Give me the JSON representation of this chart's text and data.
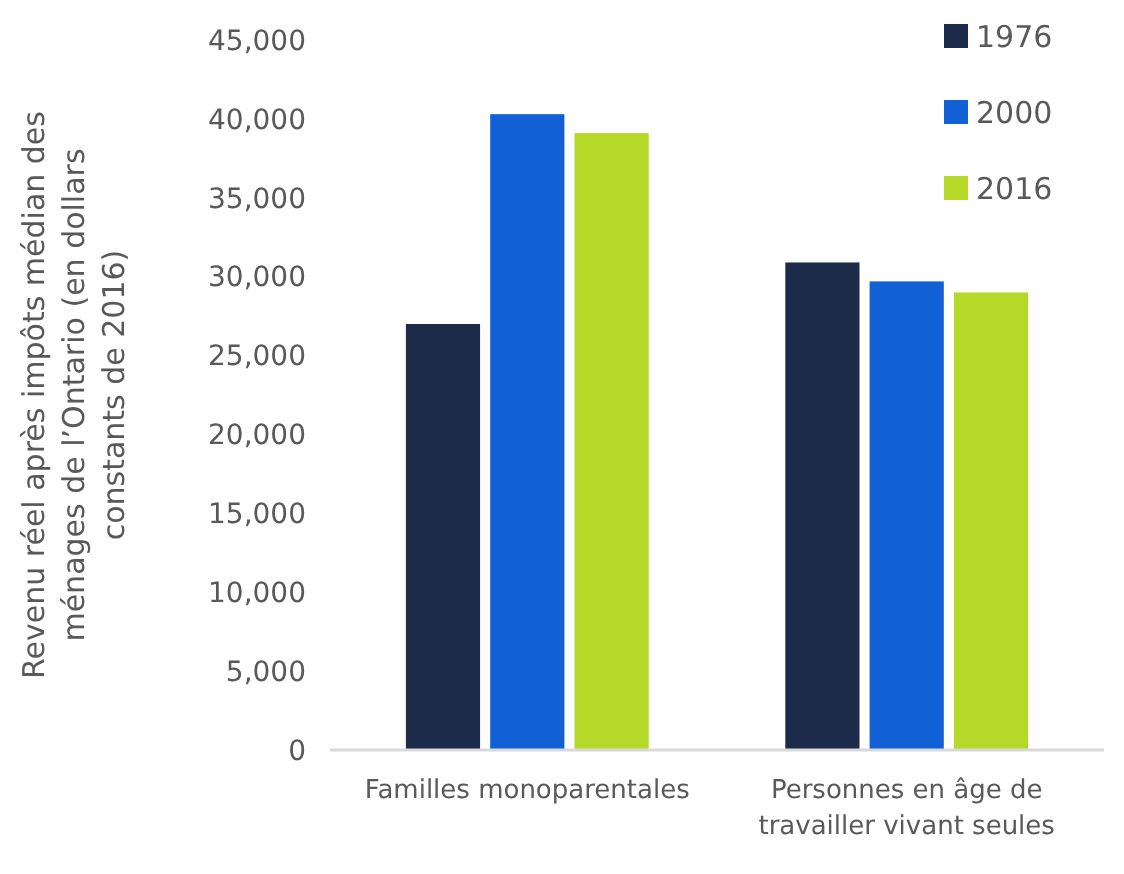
{
  "chart_data": {
    "type": "bar",
    "ylabel": "Revenu réel après impôts médian des ménages de l’Ontario (en dollars constants de 2016)",
    "categories": [
      "Familles monoparentales",
      "Personnes en âge de travailler vivant seules"
    ],
    "series": [
      {
        "name": "1976",
        "color": "#1d2b4b",
        "values": [
          27000,
          30900
        ]
      },
      {
        "name": "2000",
        "color": "#1160d6",
        "values": [
          40300,
          29700
        ]
      },
      {
        "name": "2016",
        "color": "#b5d929",
        "values": [
          39100,
          29000
        ]
      }
    ],
    "ylim": [
      0,
      45000
    ],
    "yticks": [
      {
        "value": 0,
        "label": "0"
      },
      {
        "value": 5000,
        "label": "5,000"
      },
      {
        "value": 10000,
        "label": "10,000"
      },
      {
        "value": 15000,
        "label": "15,000"
      },
      {
        "value": 20000,
        "label": "20,000"
      },
      {
        "value": 25000,
        "label": "25,000"
      },
      {
        "value": 30000,
        "label": "30,000"
      },
      {
        "value": 35000,
        "label": "35,000"
      },
      {
        "value": 40000,
        "label": "40,000"
      },
      {
        "value": 45000,
        "label": "45,000"
      }
    ],
    "grid": false,
    "legend": "top right"
  }
}
